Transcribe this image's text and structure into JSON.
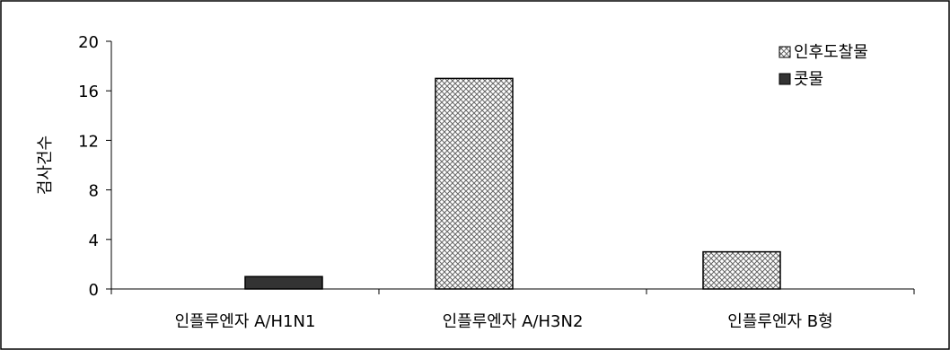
{
  "chart_data": {
    "type": "bar",
    "title": "",
    "xlabel": "",
    "ylabel": "검사건수",
    "ylim": [
      0,
      20
    ],
    "yticks": [
      0,
      4,
      8,
      12,
      16,
      20
    ],
    "grid": false,
    "legend_position": "top-right",
    "categories": [
      "인플루엔자 A/H1N1",
      "인플루엔자 A/H3N2",
      "인플루엔자 B형"
    ],
    "series": [
      {
        "name": "인후도찰물",
        "values": [
          0,
          17,
          3
        ],
        "pattern": "crosshatch",
        "color": "#c8c8c8"
      },
      {
        "name": "콧물",
        "values": [
          1,
          0,
          0
        ],
        "pattern": "solid",
        "color": "#333333"
      }
    ]
  }
}
